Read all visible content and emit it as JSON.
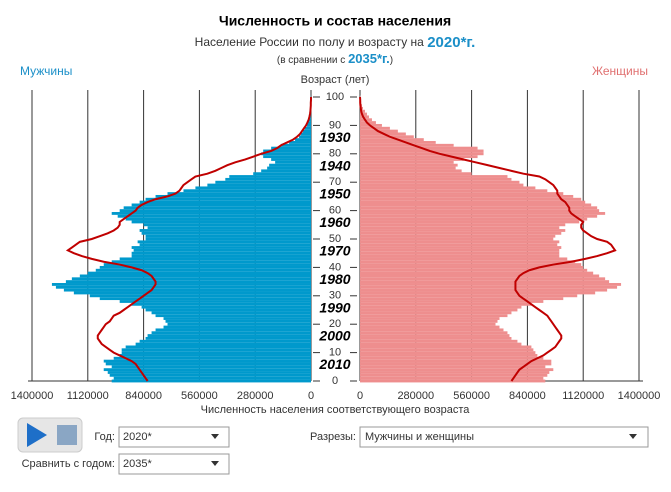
{
  "chart_data": {
    "type": "pyramid",
    "title": "Численность и состав населения",
    "subtitle_prefix": "Население России по полу и возрасту на",
    "subtitle_year": "2020*г.",
    "compare_prefix": "(в сравнении с",
    "compare_year": "2035*г.",
    "compare_suffix": ")",
    "y_label": "Возраст (лет)",
    "x_label": "Численность населения соответствующего возраста",
    "ages": [
      0,
      1,
      2,
      3,
      4,
      5,
      6,
      7,
      8,
      9,
      10,
      11,
      12,
      13,
      14,
      15,
      16,
      17,
      18,
      19,
      20,
      21,
      22,
      23,
      24,
      25,
      26,
      27,
      28,
      29,
      30,
      31,
      32,
      33,
      34,
      35,
      36,
      37,
      38,
      39,
      40,
      41,
      42,
      43,
      44,
      45,
      46,
      47,
      48,
      49,
      50,
      51,
      52,
      53,
      54,
      55,
      56,
      57,
      58,
      59,
      60,
      61,
      62,
      63,
      64,
      65,
      66,
      67,
      68,
      69,
      70,
      71,
      72,
      73,
      74,
      75,
      76,
      77,
      78,
      79,
      80,
      81,
      82,
      83,
      84,
      85,
      86,
      87,
      88,
      89,
      90,
      91,
      92,
      93,
      94,
      95,
      96,
      97,
      98,
      99,
      100
    ],
    "ylim": [
      0,
      100
    ],
    "yticks": [
      0,
      10,
      20,
      30,
      40,
      50,
      60,
      70,
      80,
      90,
      100
    ],
    "xlim": [
      0,
      1400000
    ],
    "xticks": [
      0,
      280000,
      560000,
      840000,
      1120000,
      1400000
    ],
    "grid": true,
    "cohort_labels": [
      1930,
      1940,
      1950,
      1960,
      1970,
      1980,
      1990,
      2000,
      2010
    ],
    "compare_color": "#c00000",
    "series": [
      {
        "name": "Мужчины",
        "side": "left",
        "color": "#0099cc",
        "values": [
          1000000,
          990000,
          1010000,
          1020000,
          1040000,
          1000000,
          1030000,
          1040000,
          990000,
          960000,
          950000,
          950000,
          930000,
          880000,
          860000,
          830000,
          820000,
          800000,
          780000,
          740000,
          720000,
          730000,
          740000,
          780000,
          800000,
          830000,
          850000,
          900000,
          960000,
          1060000,
          1110000,
          1190000,
          1240000,
          1280000,
          1300000,
          1230000,
          1200000,
          1160000,
          1120000,
          1080000,
          1060000,
          1040000,
          1000000,
          960000,
          900000,
          900000,
          890000,
          900000,
          860000,
          870000,
          830000,
          830000,
          850000,
          860000,
          820000,
          840000,
          900000,
          930000,
          970000,
          1000000,
          960000,
          940000,
          900000,
          860000,
          830000,
          780000,
          720000,
          640000,
          580000,
          520000,
          480000,
          430000,
          410000,
          290000,
          250000,
          220000,
          210000,
          180000,
          200000,
          240000,
          250000,
          240000,
          200000,
          150000,
          110000,
          80000,
          60000,
          50000,
          40000,
          30000,
          20000,
          15000,
          12000,
          10000,
          8000,
          6000,
          4000,
          3000,
          2000,
          1000,
          1000
        ],
        "compare_values": [
          820000,
          830000,
          840000,
          850000,
          860000,
          870000,
          880000,
          900000,
          930000,
          960000,
          990000,
          1010000,
          1030000,
          1050000,
          1060000,
          1070000,
          1070000,
          1060000,
          1050000,
          1040000,
          1030000,
          1010000,
          1000000,
          990000,
          960000,
          940000,
          920000,
          900000,
          880000,
          860000,
          840000,
          820000,
          800000,
          790000,
          780000,
          780000,
          790000,
          800000,
          820000,
          850000,
          900000,
          960000,
          1040000,
          1100000,
          1150000,
          1190000,
          1220000,
          1200000,
          1180000,
          1160000,
          1100000,
          1060000,
          1020000,
          990000,
          970000,
          960000,
          960000,
          940000,
          920000,
          900000,
          880000,
          870000,
          850000,
          820000,
          780000,
          720000,
          680000,
          660000,
          650000,
          640000,
          620000,
          600000,
          580000,
          520000,
          480000,
          450000,
          420000,
          380000,
          330000,
          290000,
          250000,
          200000,
          170000,
          150000,
          120000,
          90000,
          70000,
          55000,
          45000,
          35000,
          25000,
          18000,
          12000,
          8000,
          5000,
          3000,
          2000,
          1000,
          1000,
          0,
          0
        ]
      },
      {
        "name": "Женщины",
        "side": "right",
        "color": "#ee8e8e",
        "values": [
          930000,
          920000,
          940000,
          950000,
          970000,
          930000,
          960000,
          960000,
          920000,
          890000,
          880000,
          870000,
          860000,
          810000,
          790000,
          760000,
          750000,
          740000,
          720000,
          700000,
          680000,
          690000,
          700000,
          740000,
          760000,
          790000,
          810000,
          860000,
          920000,
          1020000,
          1090000,
          1180000,
          1240000,
          1290000,
          1310000,
          1250000,
          1230000,
          1200000,
          1170000,
          1140000,
          1120000,
          1110000,
          1080000,
          1040000,
          1000000,
          1000000,
          1000000,
          1010000,
          990000,
          1000000,
          970000,
          980000,
          1010000,
          1030000,
          1000000,
          1030000,
          1100000,
          1140000,
          1190000,
          1230000,
          1200000,
          1190000,
          1160000,
          1130000,
          1110000,
          1070000,
          1020000,
          940000,
          880000,
          820000,
          800000,
          760000,
          740000,
          560000,
          510000,
          480000,
          490000,
          470000,
          520000,
          590000,
          620000,
          620000,
          590000,
          470000,
          380000,
          320000,
          270000,
          230000,
          190000,
          150000,
          110000,
          80000,
          60000,
          45000,
          35000,
          25000,
          15000,
          10000,
          6000,
          3000,
          2000
        ],
        "compare_values": [
          760000,
          770000,
          780000,
          790000,
          800000,
          820000,
          840000,
          860000,
          890000,
          920000,
          940000,
          960000,
          980000,
          990000,
          1000000,
          1010000,
          1010000,
          1000000,
          990000,
          980000,
          970000,
          960000,
          950000,
          940000,
          920000,
          900000,
          880000,
          860000,
          840000,
          820000,
          800000,
          790000,
          780000,
          780000,
          780000,
          780000,
          790000,
          800000,
          820000,
          850000,
          900000,
          970000,
          1060000,
          1130000,
          1190000,
          1240000,
          1280000,
          1270000,
          1260000,
          1240000,
          1190000,
          1160000,
          1140000,
          1120000,
          1110000,
          1110000,
          1120000,
          1100000,
          1080000,
          1060000,
          1050000,
          1050000,
          1040000,
          1030000,
          1010000,
          1000000,
          990000,
          990000,
          980000,
          970000,
          950000,
          930000,
          900000,
          820000,
          760000,
          700000,
          640000,
          580000,
          520000,
          460000,
          400000,
          350000,
          310000,
          270000,
          230000,
          190000,
          150000,
          120000,
          90000,
          70000,
          50000,
          35000,
          25000,
          16000,
          10000,
          6000,
          4000,
          2000,
          1000,
          1000,
          0
        ]
      }
    ],
    "controls": {
      "year_label": "Год:",
      "year": "2020*",
      "slice_label": "Разрезы:",
      "slice": "Мужчины и женщины",
      "compare_label": "Сравнить с годом:",
      "compare_year": "2035*"
    }
  }
}
